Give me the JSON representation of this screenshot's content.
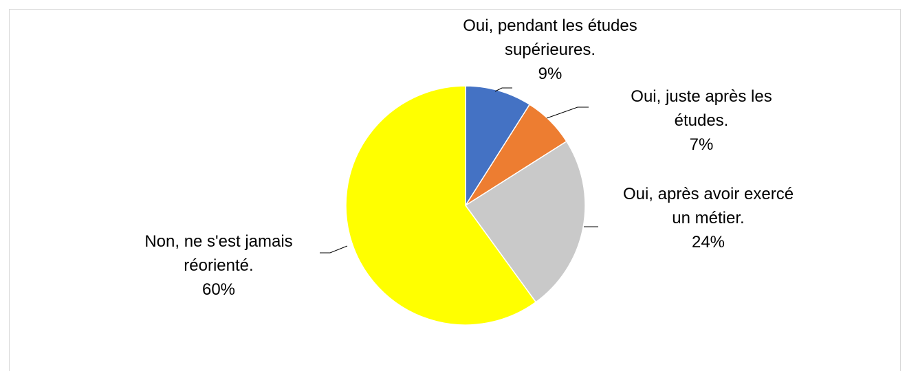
{
  "chart_data": {
    "type": "pie",
    "categories": [
      "Oui, pendant les études supérieures.",
      "Oui, juste après les études.",
      "Oui, après avoir exercé un métier.",
      "Non, ne s'est jamais réorienté."
    ],
    "values": [
      9,
      7,
      24,
      60
    ],
    "value_labels": [
      "9%",
      "7%",
      "24%",
      "60%"
    ],
    "colors": [
      "#4472c4",
      "#ed7d31",
      "#c9c9c9",
      "#ffff00"
    ]
  }
}
